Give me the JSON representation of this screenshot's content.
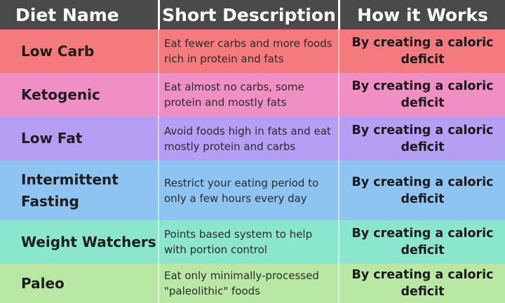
{
  "header": {
    "col_name": "Diet Name",
    "col_description": "Short Description",
    "col_how": "How it Works"
  },
  "colors": {
    "header": "#4a4a4a",
    "row_low_carb": "#f57a7e",
    "row_ketogenic": "#f08fc3",
    "row_low_fat": "#b79ef5",
    "row_intermittent_fasting": "#8ec4f2",
    "row_weight_watchers": "#8be6ce",
    "row_paleo": "#b9e8a4"
  },
  "rows": [
    {
      "name": "Low Carb",
      "description": "Eat fewer carbs and more foods rich in protein and fats",
      "how": "By creating a caloric deficit"
    },
    {
      "name": "Ketogenic",
      "description": "Eat almost no carbs, some protein and mostly fats",
      "how": "By creating a caloric deficit"
    },
    {
      "name": "Low Fat",
      "description": "Avoid foods high in fats and eat mostly protein and carbs",
      "how": "By creating a caloric deficit"
    },
    {
      "name": "Intermittent Fasting",
      "description": "Restrict your eating period to only a few hours every day",
      "how": "By creating a caloric deficit"
    },
    {
      "name": "Weight Watchers",
      "description": "Points based system to help with portion control",
      "how": "By creating a caloric deficit"
    },
    {
      "name": "Paleo",
      "description": "Eat only minimally-processed \"paleolithic\" foods",
      "how": "By creating a caloric deficit"
    }
  ]
}
